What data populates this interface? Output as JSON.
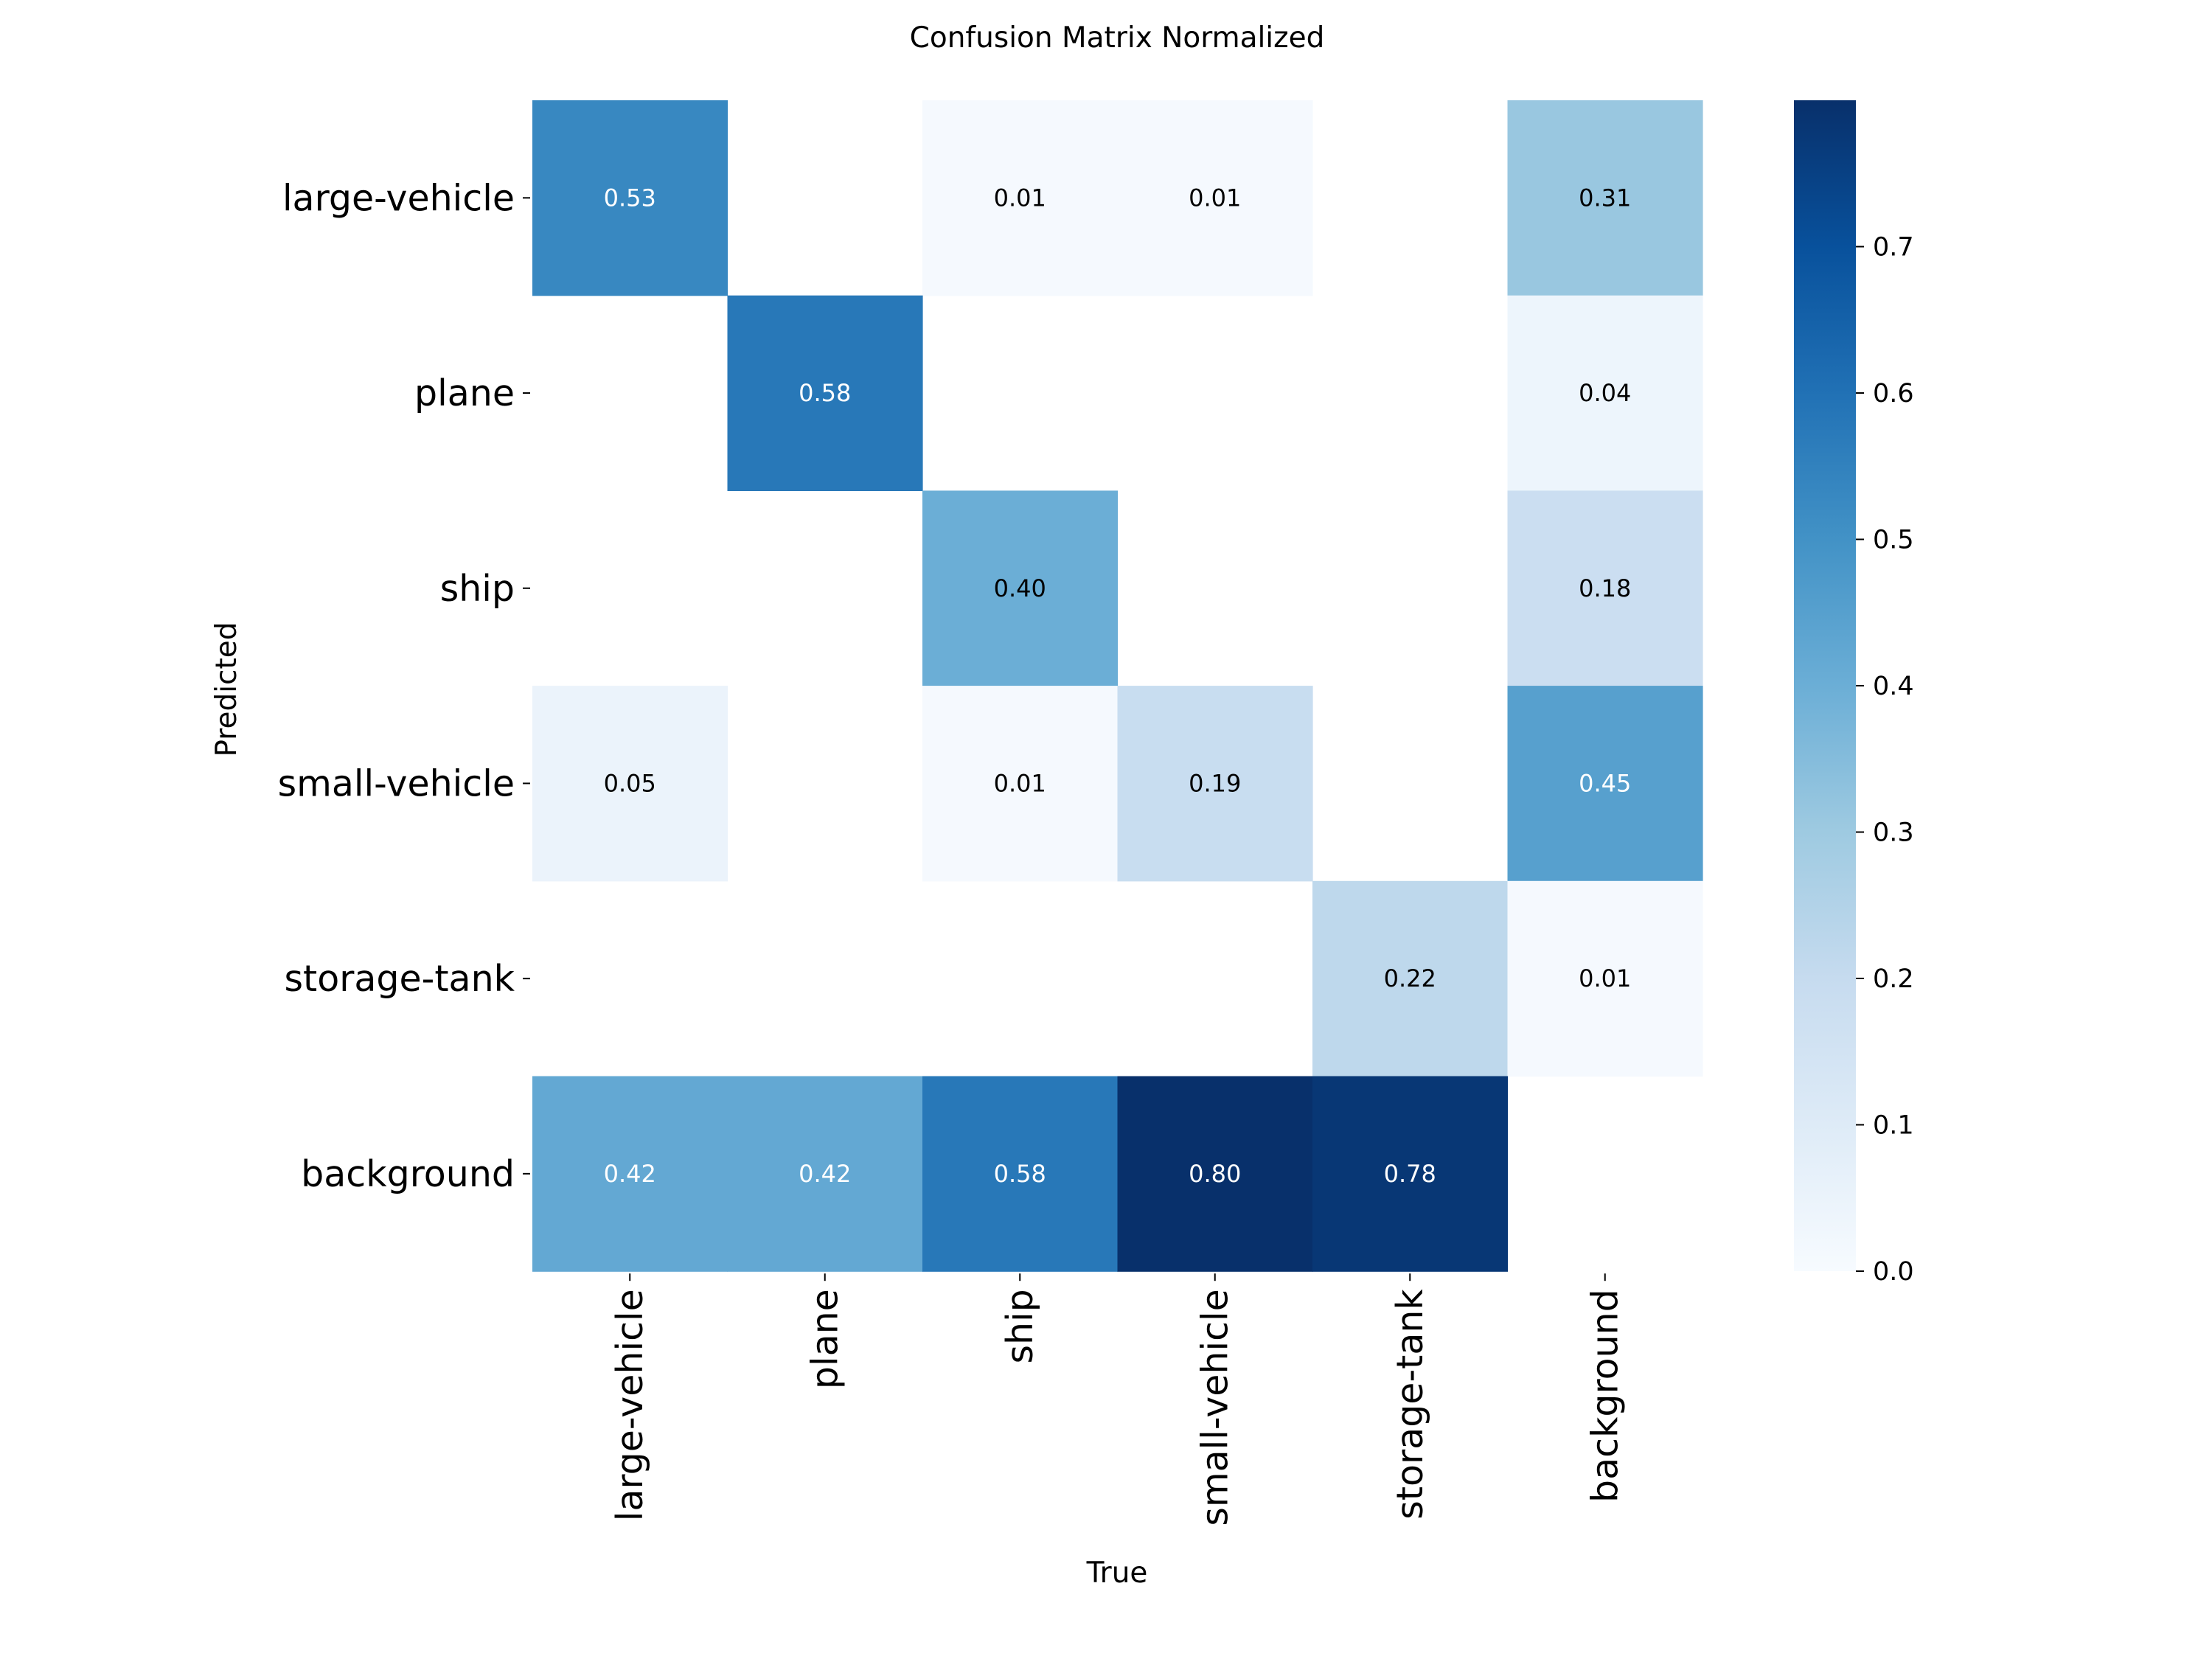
{
  "chart_data": {
    "type": "heatmap",
    "title": "Confusion Matrix Normalized",
    "xlabel": "True",
    "ylabel": "Predicted",
    "x_categories": [
      "large-vehicle",
      "plane",
      "ship",
      "small-vehicle",
      "storage-tank",
      "background"
    ],
    "y_categories": [
      "large-vehicle",
      "plane",
      "ship",
      "small-vehicle",
      "storage-tank",
      "background"
    ],
    "values": [
      [
        0.53,
        null,
        0.01,
        0.01,
        null,
        0.31
      ],
      [
        null,
        0.58,
        null,
        null,
        null,
        0.04
      ],
      [
        null,
        null,
        0.4,
        null,
        null,
        0.18
      ],
      [
        0.05,
        null,
        0.01,
        0.19,
        null,
        0.45
      ],
      [
        null,
        null,
        null,
        null,
        0.22,
        0.01
      ],
      [
        0.42,
        0.42,
        0.58,
        0.8,
        0.78,
        null
      ]
    ],
    "colormap": "Blues",
    "vmin": 0.0,
    "vmax": 0.8,
    "colorbar_ticks": [
      "0.0",
      "0.1",
      "0.2",
      "0.3",
      "0.4",
      "0.5",
      "0.6",
      "0.7"
    ],
    "grid": false,
    "legend": "colorbar-right"
  }
}
